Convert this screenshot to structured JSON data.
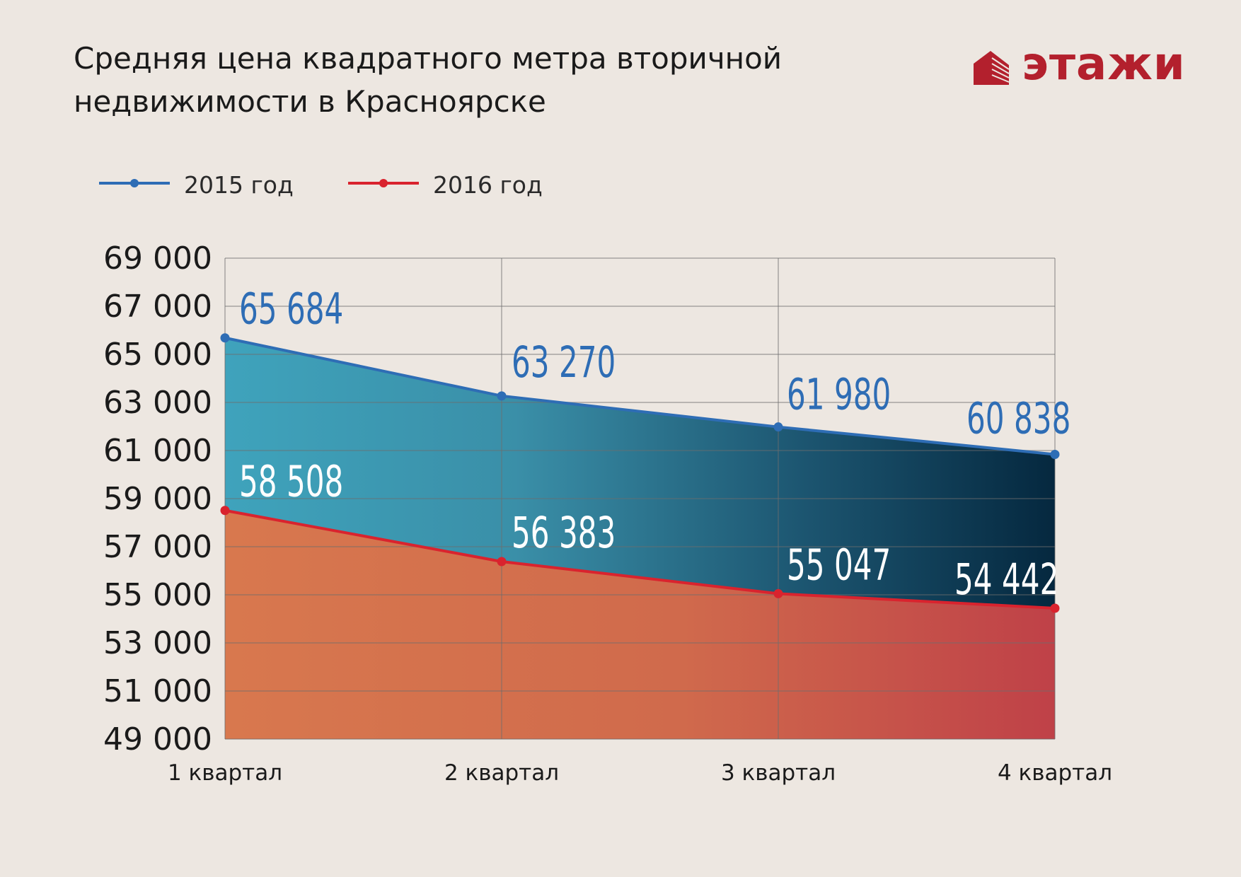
{
  "title": {
    "line1": "Средняя цена квадратного метра вторичной",
    "line2": "недвижимости в Красноярске"
  },
  "logo": {
    "text": "этажи",
    "color": "#b3202d"
  },
  "legend": [
    {
      "label": "2015 год",
      "color": "#2e6db5"
    },
    {
      "label": "2016 год",
      "color": "#d9232e"
    }
  ],
  "chart_data": {
    "type": "area",
    "categories": [
      "1 квартал",
      "2 квартал",
      "3 квартал",
      "4 квартал"
    ],
    "series": [
      {
        "name": "2015 год",
        "values": [
          65684,
          63270,
          61980,
          60838
        ],
        "labels": [
          "65 684",
          "63 270",
          "61 980",
          "60 838"
        ],
        "color": "#2e6db5"
      },
      {
        "name": "2016 год",
        "values": [
          58508,
          56383,
          55047,
          54442
        ],
        "labels": [
          "58 508",
          "56 383",
          "55 047",
          "54 442"
        ],
        "color": "#d9232e"
      }
    ],
    "ylim": [
      49000,
      69000
    ],
    "yticks": [
      "49 000",
      "51 000",
      "53 000",
      "55 000",
      "57 000",
      "59 000",
      "61 000",
      "63 000",
      "65 000",
      "67 000",
      "69 000"
    ],
    "grid": true,
    "legend_position": "top-left"
  }
}
